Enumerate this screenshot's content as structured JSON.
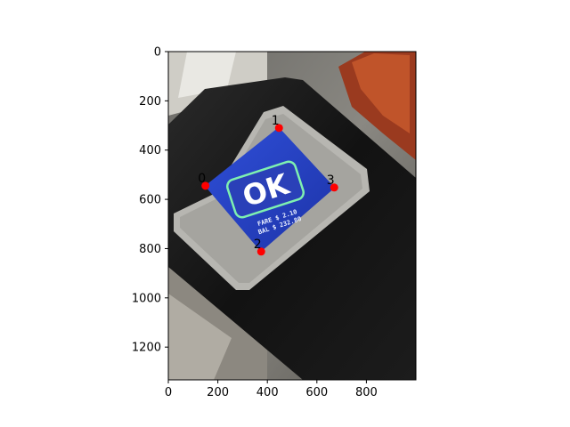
{
  "chart_data": {
    "type": "scatter",
    "title": "",
    "xlabel": "",
    "ylabel": "",
    "xlim": [
      0,
      1000
    ],
    "ylim": [
      1333,
      0
    ],
    "y_inverted": true,
    "grid": false,
    "x_ticks": [
      0,
      200,
      400,
      600,
      800
    ],
    "y_ticks": [
      0,
      200,
      400,
      600,
      800,
      1000,
      1200
    ],
    "background_image": "photo of a black transit fare card reader with a blue screen showing a large OK message",
    "screen_text": {
      "main": "OK",
      "line1": "FARE $ 2.10",
      "line2": "BAL  $ 232.80"
    },
    "marker_color": "#ff0000",
    "points": [
      {
        "label": "0",
        "x": 150,
        "y": 545
      },
      {
        "label": "1",
        "x": 447,
        "y": 310
      },
      {
        "label": "2",
        "x": 375,
        "y": 812
      },
      {
        "label": "3",
        "x": 670,
        "y": 552
      }
    ]
  }
}
